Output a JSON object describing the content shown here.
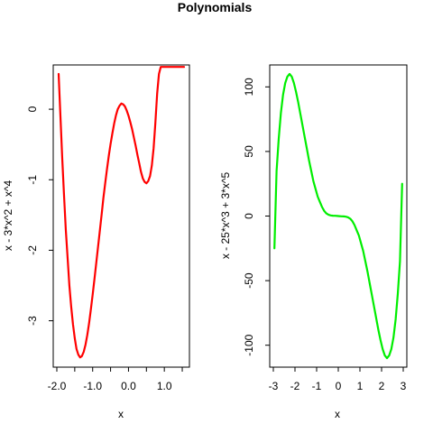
{
  "figure": {
    "title": "Polynomials"
  },
  "chart_data": [
    {
      "type": "line",
      "title": "",
      "xlabel": "x",
      "ylabel": "x - 3*x^2 + x^4",
      "xlim": [
        -2.0,
        1.6
      ],
      "ylim": [
        -3.53,
        0.5
      ],
      "x_ticks": [
        -2.0,
        -1.5,
        -1.0,
        -0.5,
        0.0,
        0.5,
        1.0,
        1.5
      ],
      "x_tick_labels": [
        "-2.0",
        "",
        "-1.0",
        "",
        "0.0",
        "",
        "1.0",
        ""
      ],
      "y_ticks": [
        0,
        -1,
        -2,
        -3
      ],
      "y_tick_labels": [
        "0",
        "-1",
        "-2",
        "-3"
      ],
      "grid": false,
      "series": [
        {
          "color": "#ff0000",
          "x": [
            -1.95,
            -1.9,
            -1.85,
            -1.8,
            -1.75,
            -1.7,
            -1.65,
            -1.6,
            -1.55,
            -1.5,
            -1.45,
            -1.4,
            -1.35,
            -1.3,
            -1.25,
            -1.2,
            -1.15,
            -1.1,
            -1.05,
            -1.0,
            -0.95,
            -0.9,
            -0.85,
            -0.8,
            -0.75,
            -0.7,
            -0.65,
            -0.6,
            -0.55,
            -0.5,
            -0.45,
            -0.4,
            -0.35,
            -0.3,
            -0.25,
            -0.2,
            -0.15,
            -0.1,
            -0.05,
            0.0,
            0.05,
            0.1,
            0.15,
            0.2,
            0.25,
            0.3,
            0.35,
            0.4,
            0.45,
            0.5,
            0.55,
            0.6,
            0.65,
            0.7,
            0.75,
            0.8,
            0.85,
            0.9,
            0.95,
            1.0,
            1.05,
            1.1,
            1.15,
            1.2,
            1.25,
            1.3,
            1.35,
            1.4,
            1.45,
            1.5,
            1.55
          ],
          "y": [
            0.5,
            -0.1,
            -0.7,
            -1.2,
            -1.7,
            -2.1,
            -2.5,
            -2.8,
            -3.05,
            -3.25,
            -3.4,
            -3.48,
            -3.52,
            -3.5,
            -3.44,
            -3.34,
            -3.2,
            -3.03,
            -2.84,
            -2.63,
            -2.41,
            -2.18,
            -1.95,
            -1.72,
            -1.49,
            -1.26,
            -1.05,
            -0.85,
            -0.66,
            -0.49,
            -0.34,
            -0.2,
            -0.09,
            0.0,
            0.05,
            0.08,
            0.07,
            0.04,
            -0.02,
            -0.09,
            -0.18,
            -0.28,
            -0.4,
            -0.52,
            -0.65,
            -0.77,
            -0.89,
            -0.98,
            -1.03,
            -1.05,
            -1.02,
            -0.95,
            -0.8,
            -0.55,
            -0.2,
            0.22,
            0.5,
            0.6,
            0.6,
            0.6,
            0.6,
            0.6,
            0.6,
            0.6,
            0.6,
            0.6,
            0.6,
            0.6,
            0.6,
            0.6,
            0.6
          ]
        }
      ]
    },
    {
      "type": "line",
      "title": "",
      "xlabel": "x",
      "ylabel": "x - 25*x^3 + 3*x^5",
      "xlim": [
        -3.0,
        3.0
      ],
      "ylim": [
        -110,
        110
      ],
      "x_ticks": [
        -3,
        -2,
        -1,
        0,
        1,
        2,
        3
      ],
      "x_tick_labels": [
        "-3",
        "-2",
        "-1",
        "0",
        "1",
        "2",
        "3"
      ],
      "y_ticks": [
        100,
        50,
        0,
        -50,
        -100
      ],
      "y_tick_labels": [
        "100",
        "50",
        "0",
        "-50",
        "-100"
      ],
      "grid": false,
      "series": [
        {
          "color": "#00ee00",
          "x": [
            -2.95,
            -2.85,
            -2.75,
            -2.65,
            -2.55,
            -2.45,
            -2.35,
            -2.25,
            -2.15,
            -2.05,
            -1.95,
            -1.85,
            -1.75,
            -1.65,
            -1.55,
            -1.45,
            -1.35,
            -1.25,
            -1.15,
            -1.05,
            -0.95,
            -0.85,
            -0.75,
            -0.65,
            -0.55,
            -0.45,
            -0.35,
            -0.25,
            -0.15,
            -0.05,
            0.05,
            0.15,
            0.25,
            0.35,
            0.45,
            0.55,
            0.65,
            0.75,
            0.85,
            0.95,
            1.05,
            1.15,
            1.25,
            1.35,
            1.45,
            1.55,
            1.65,
            1.75,
            1.85,
            1.95,
            2.05,
            2.15,
            2.25,
            2.35,
            2.45,
            2.55,
            2.65,
            2.75,
            2.85,
            2.95
          ],
          "y": [
            -25,
            35,
            60,
            80,
            94,
            103,
            108,
            110,
            108,
            103,
            96,
            88,
            79,
            70,
            61,
            52,
            43,
            35,
            27,
            21,
            15,
            11,
            7,
            4,
            2,
            1,
            0.5,
            0.3,
            0.2,
            0.1,
            -0.1,
            -0.2,
            -0.3,
            -0.5,
            -1,
            -2,
            -4,
            -7,
            -11,
            -15,
            -21,
            -27,
            -35,
            -43,
            -52,
            -61,
            -70,
            -79,
            -88,
            -96,
            -103,
            -108,
            -110,
            -108,
            -103,
            -94,
            -80,
            -60,
            -35,
            25
          ]
        }
      ]
    }
  ]
}
